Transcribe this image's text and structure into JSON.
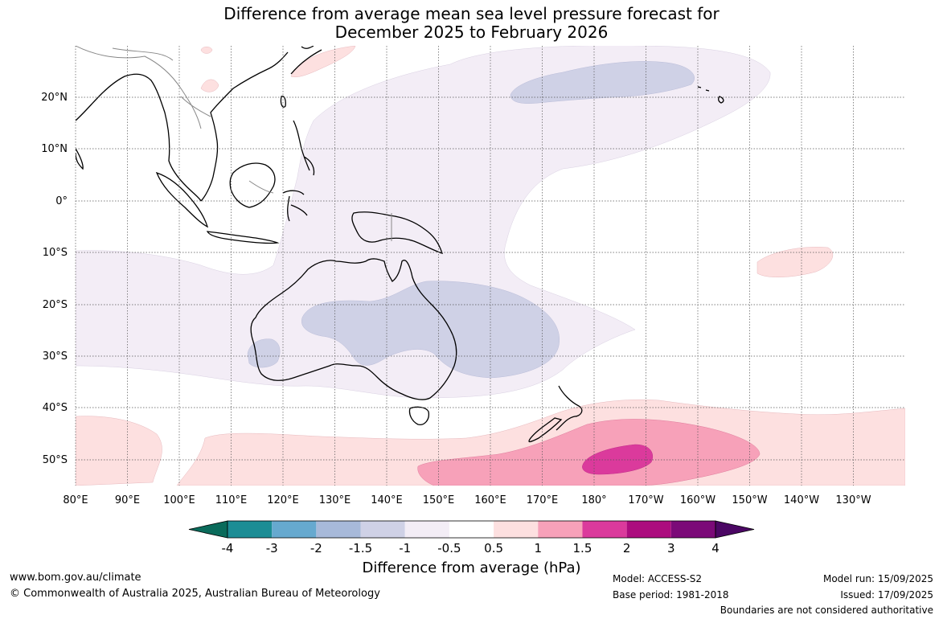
{
  "title_line1": "Difference from average mean sea level pressure forecast for",
  "title_line2": "December 2025 to February 2026",
  "lat_labels": [
    "20°N",
    "10°N",
    "0°",
    "10°S",
    "20°S",
    "30°S",
    "40°S",
    "50°S"
  ],
  "lon_labels": [
    "80°E",
    "90°E",
    "100°E",
    "110°E",
    "120°E",
    "130°E",
    "140°E",
    "150°E",
    "160°E",
    "170°E",
    "180°",
    "170°W",
    "160°W",
    "150°W",
    "140°W",
    "130°W"
  ],
  "colorbar": {
    "title": "Difference from average (hPa)",
    "ticks": [
      "-4",
      "-3",
      "-2",
      "-1.5",
      "-1",
      "-0.5",
      "0.5",
      "1",
      "1.5",
      "2",
      "3",
      "4"
    ],
    "colors": [
      "#0a6b5b",
      "#1c8d95",
      "#66a9cf",
      "#a7b9d9",
      "#cfd1e6",
      "#f3edf6",
      "#ffffff",
      "#fde0e0",
      "#f7a1b9",
      "#db3a9c",
      "#ac0c7e",
      "#7b0a78",
      "#4b0764"
    ]
  },
  "footer": {
    "website": "www.bom.gov.au/climate",
    "copyright": "© Commonwealth of Australia 2025, Australian Bureau of Meteorology",
    "model": "Model: ACCESS-S2",
    "base_period": "Base period: 1981-2018",
    "model_run": "Model run: 15/09/2025",
    "issued": "Issued: 17/09/2025",
    "boundaries": "Boundaries are not considered authoritative"
  }
}
